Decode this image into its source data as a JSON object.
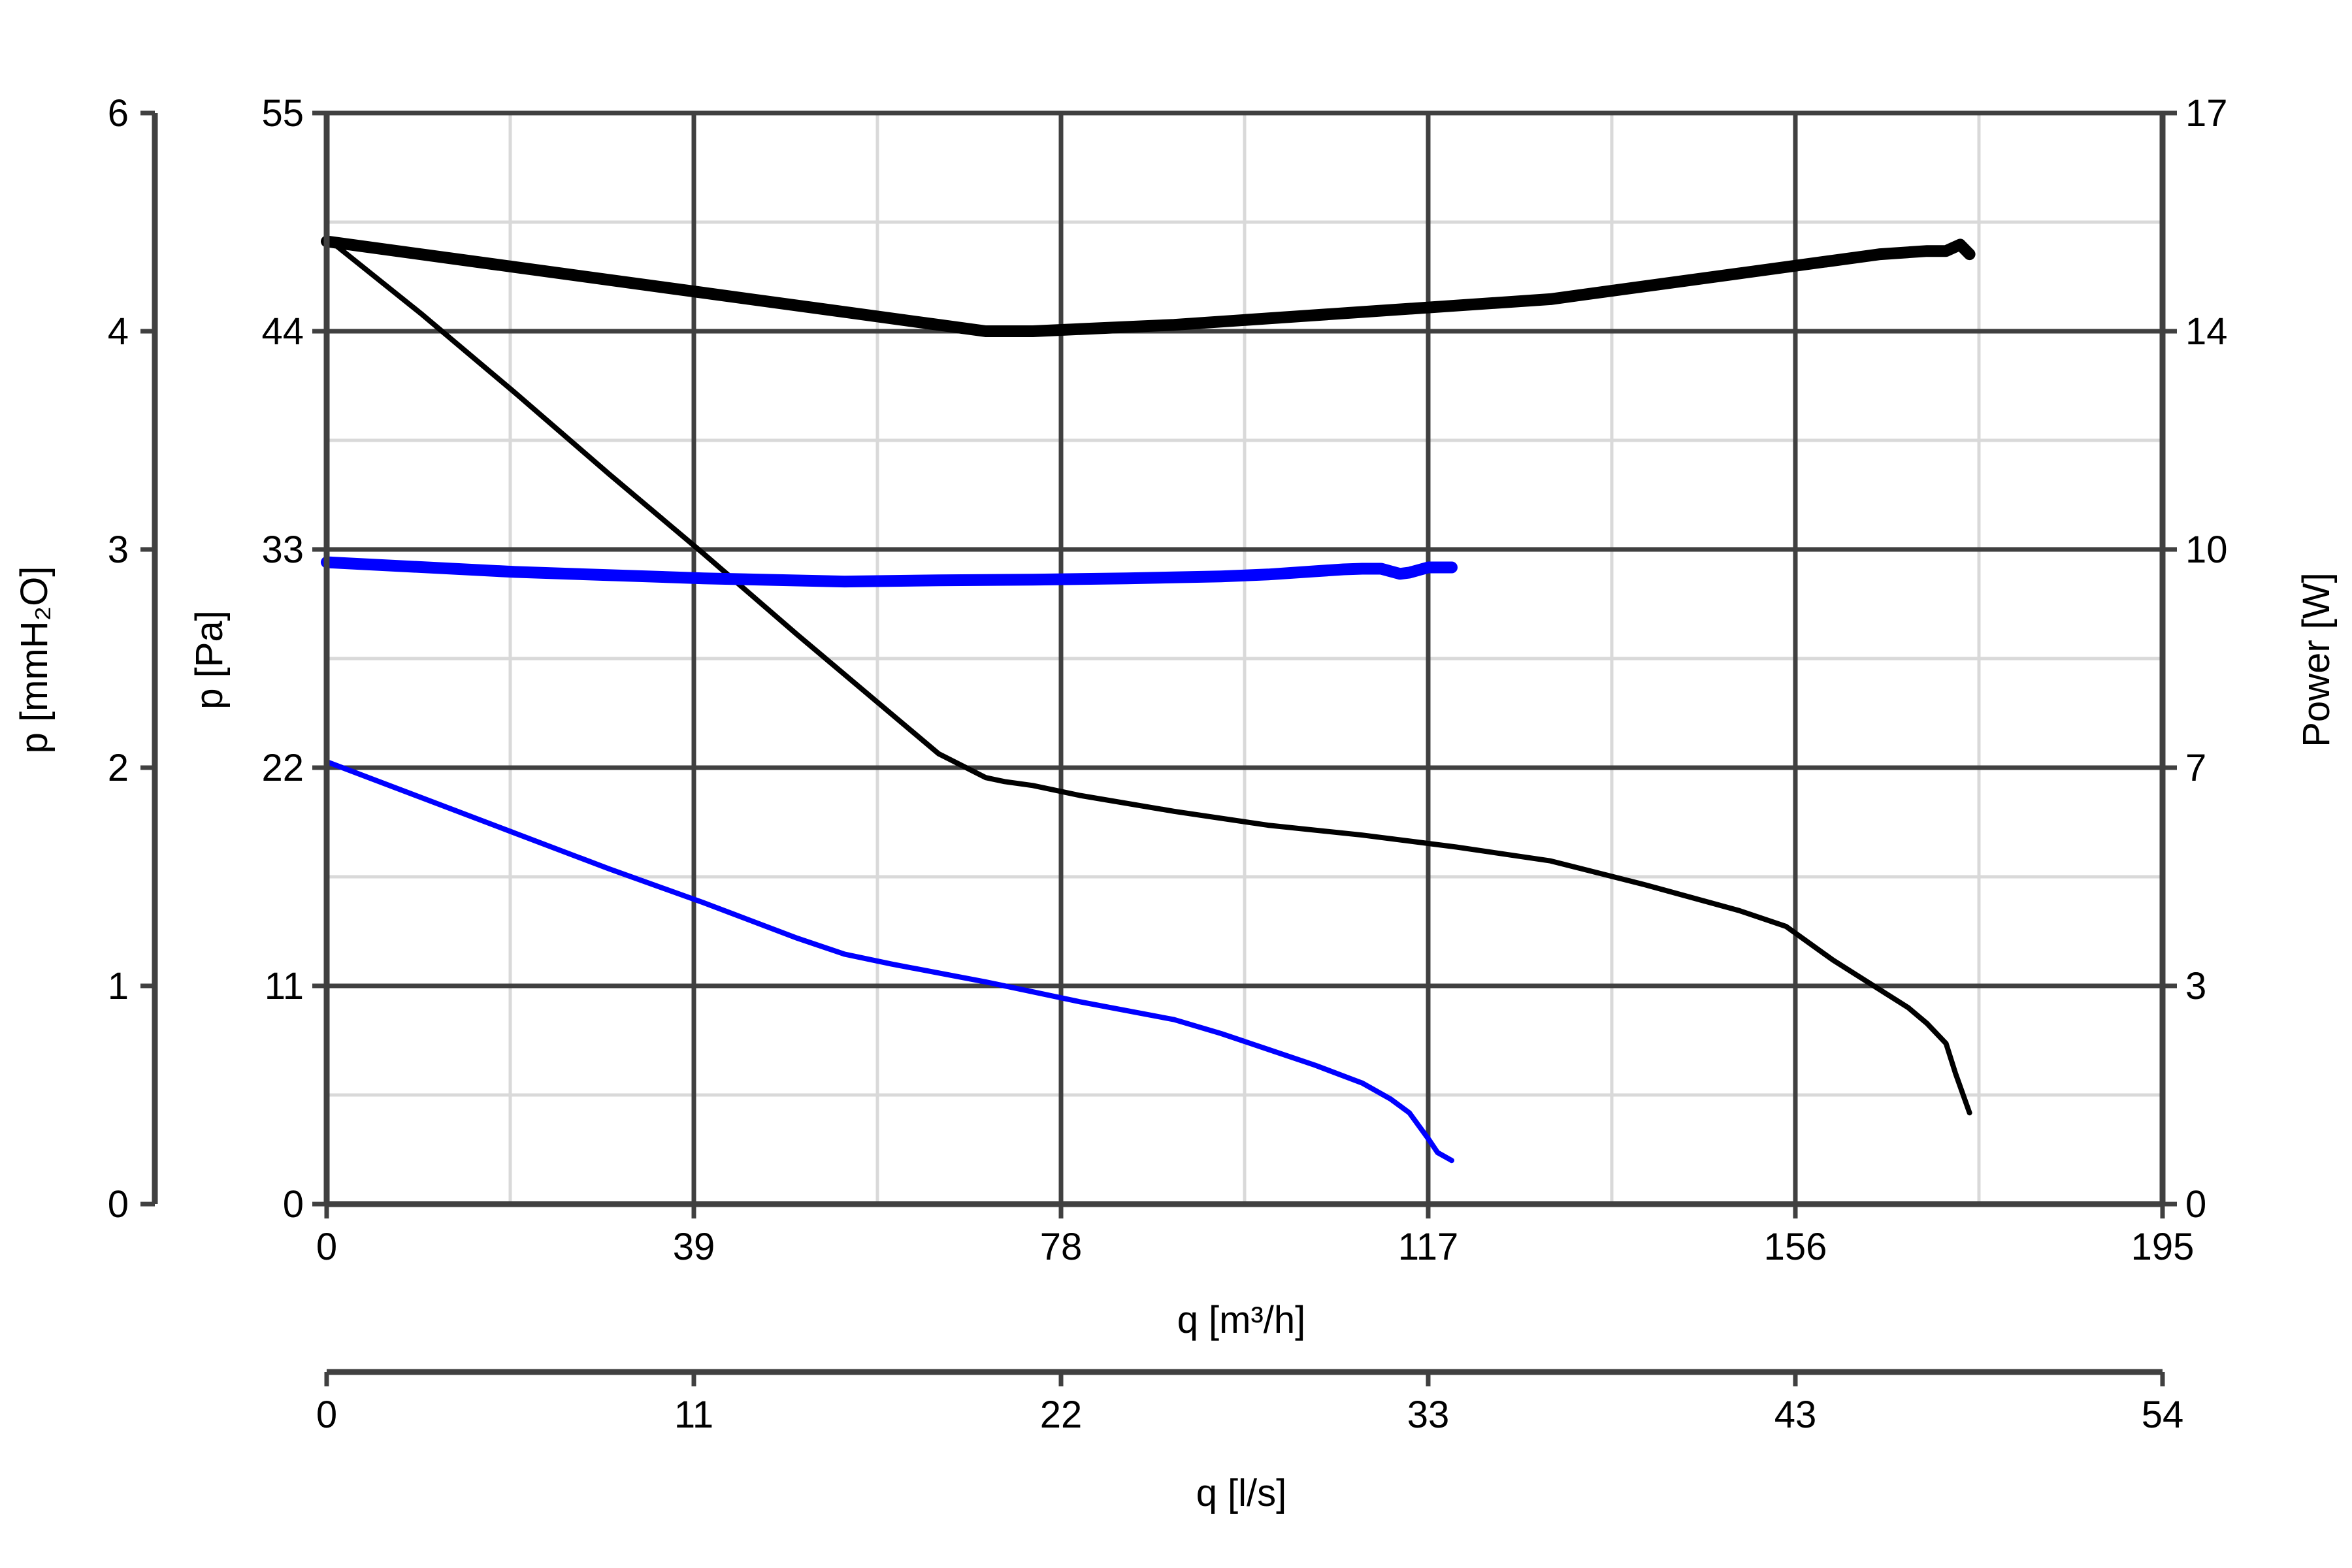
{
  "chart_data": {
    "type": "line",
    "x_axis": {
      "label": "q [m³/h]",
      "ticks": [
        "0",
        "39",
        "78",
        "117",
        "156",
        "195"
      ],
      "range": [
        0,
        195
      ]
    },
    "x_axis_secondary": {
      "label": "q [l/s]",
      "ticks": [
        "0",
        "11",
        "22",
        "33",
        "43",
        "54"
      ]
    },
    "y_axis_pressure_pa": {
      "label": "p [Pa]",
      "ticks": [
        "0",
        "11",
        "22",
        "33",
        "44",
        "55"
      ],
      "range": [
        0,
        55
      ]
    },
    "y_axis_pressure_mmh2o": {
      "label": "p [mmH₂O]",
      "ticks": [
        "0",
        "1",
        "2",
        "3",
        "4",
        "6"
      ]
    },
    "y_axis_power": {
      "label": "Power [W]",
      "ticks": [
        "0",
        "3",
        "7",
        "10",
        "14",
        "17"
      ],
      "range": [
        0,
        17
      ]
    },
    "grid": true,
    "series": [
      {
        "axis": "pressure",
        "color": "#000000",
        "weight": "thin",
        "x": [
          0,
          10,
          20,
          30,
          40,
          50,
          60,
          65,
          70,
          72,
          75,
          80,
          90,
          100,
          110,
          120,
          130,
          140,
          150,
          155,
          160,
          164,
          168,
          170,
          172,
          173,
          174.5
        ],
        "y": [
          48.7,
          44.9,
          40.9,
          36.8,
          32.8,
          28.7,
          24.7,
          22.7,
          21.5,
          21.3,
          21.1,
          20.6,
          19.8,
          19.1,
          18.6,
          18.0,
          17.3,
          16.1,
          14.8,
          14.0,
          12.3,
          11.1,
          9.9,
          9.1,
          8.1,
          6.6,
          4.6
        ]
      },
      {
        "axis": "power",
        "color": "#000000",
        "weight": "thick",
        "x": [
          0,
          20,
          40,
          55,
          65,
          70,
          72,
          75,
          90,
          110,
          130,
          140,
          150,
          160,
          165,
          170,
          172,
          173.5,
          174.5
        ],
        "y": [
          15.0,
          14.6,
          14.2,
          13.9,
          13.7,
          13.6,
          13.6,
          13.6,
          13.7,
          13.9,
          14.1,
          14.3,
          14.5,
          14.7,
          14.8,
          14.85,
          14.85,
          14.95,
          14.8
        ]
      },
      {
        "axis": "pressure",
        "color": "#0000ff",
        "weight": "thin",
        "x": [
          0,
          10,
          20,
          30,
          40,
          50,
          55,
          60,
          70,
          80,
          90,
          95,
          100,
          105,
          110,
          113,
          115,
          117,
          118,
          119.5
        ],
        "y": [
          22.3,
          20.5,
          18.7,
          16.9,
          15.2,
          13.4,
          12.6,
          12.1,
          11.2,
          10.2,
          9.3,
          8.6,
          7.8,
          7.0,
          6.1,
          5.3,
          4.6,
          3.3,
          2.6,
          2.2
        ]
      },
      {
        "axis": "power",
        "color": "#0000ff",
        "weight": "thick",
        "x": [
          0,
          20,
          40,
          55,
          65,
          75,
          85,
          95,
          100,
          105,
          108,
          110,
          112,
          113,
          114,
          115,
          117,
          119.5
        ],
        "y": [
          10.0,
          9.85,
          9.75,
          9.7,
          9.72,
          9.73,
          9.75,
          9.78,
          9.81,
          9.86,
          9.89,
          9.9,
          9.9,
          9.86,
          9.82,
          9.84,
          9.92,
          9.92
        ]
      }
    ]
  }
}
